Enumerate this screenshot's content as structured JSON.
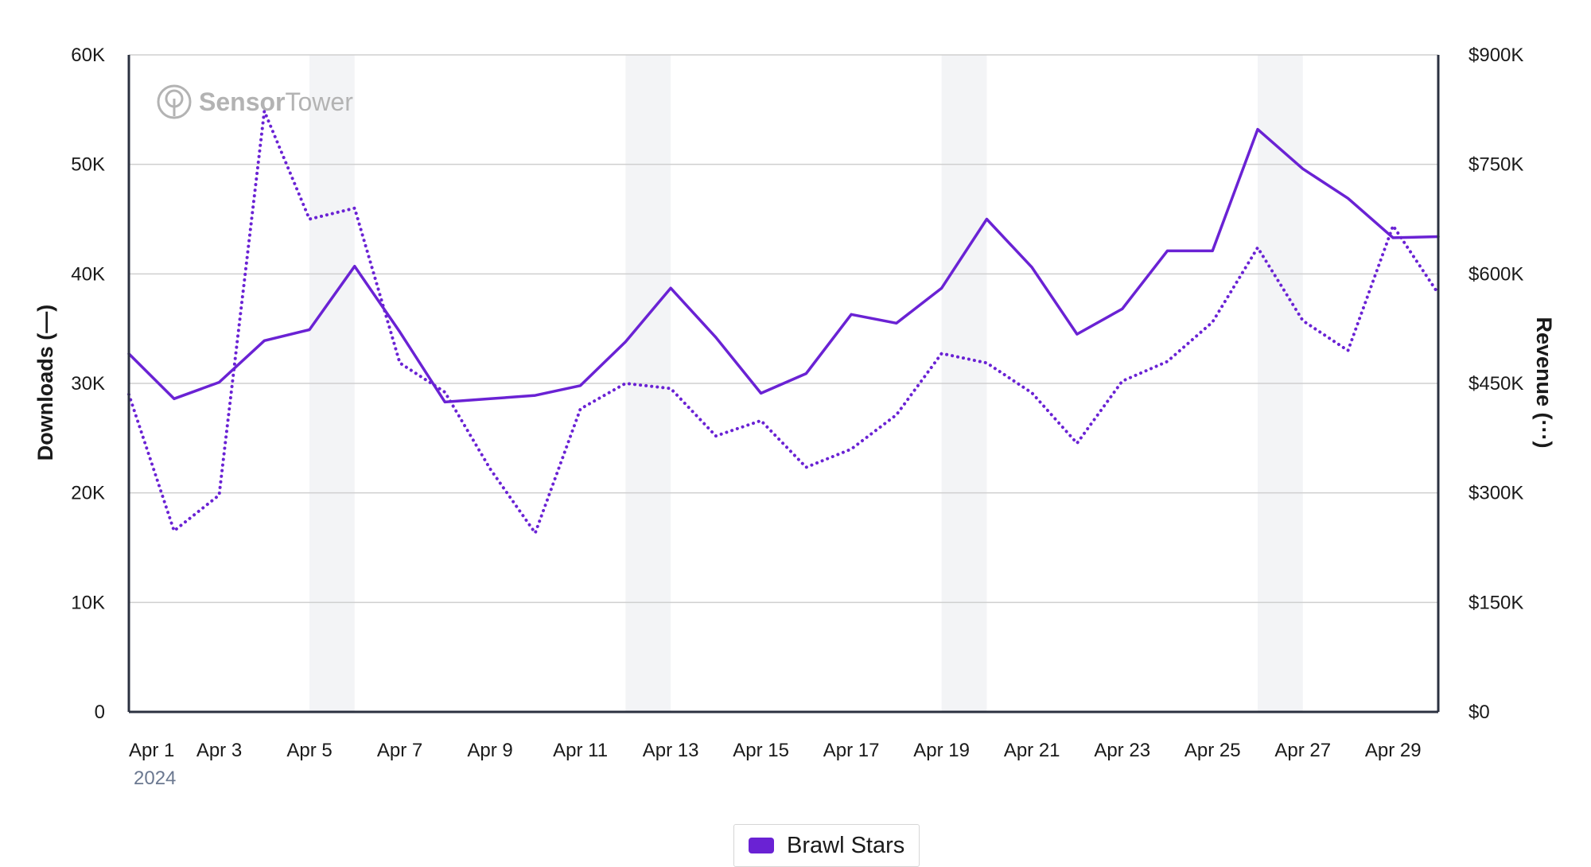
{
  "chart_data": {
    "type": "line",
    "categories": [
      "Apr 1",
      "Apr 2",
      "Apr 3",
      "Apr 4",
      "Apr 5",
      "Apr 6",
      "Apr 7",
      "Apr 8",
      "Apr 9",
      "Apr 10",
      "Apr 11",
      "Apr 12",
      "Apr 13",
      "Apr 14",
      "Apr 15",
      "Apr 16",
      "Apr 17",
      "Apr 18",
      "Apr 19",
      "Apr 20",
      "Apr 21",
      "Apr 22",
      "Apr 23",
      "Apr 24",
      "Apr 25",
      "Apr 26",
      "Apr 27",
      "Apr 28",
      "Apr 29",
      "Apr 30"
    ],
    "x_tick_labels": [
      "Apr 1",
      "Apr 3",
      "Apr 5",
      "Apr 7",
      "Apr 9",
      "Apr 11",
      "Apr 13",
      "Apr 15",
      "Apr 17",
      "Apr 19",
      "Apr 21",
      "Apr 23",
      "Apr 25",
      "Apr 27",
      "Apr 29"
    ],
    "x_year_label": "2024",
    "series": [
      {
        "name": "Brawl Stars",
        "metric": "Downloads",
        "axis": "left",
        "style": "solid",
        "values": [
          32700,
          28600,
          30100,
          33900,
          34900,
          40700,
          34700,
          28300,
          28600,
          28900,
          29800,
          33800,
          38700,
          34200,
          29100,
          30900,
          36300,
          35500,
          38700,
          45000,
          40600,
          34500,
          36800,
          42100,
          42100,
          53200,
          49600,
          46900,
          43300,
          43400
        ]
      },
      {
        "name": "Brawl Stars",
        "metric": "Revenue",
        "axis": "right",
        "style": "dotted",
        "values": [
          435000,
          248000,
          297000,
          823000,
          675000,
          690000,
          478000,
          438000,
          333000,
          245000,
          415000,
          450000,
          443000,
          378000,
          399000,
          335000,
          360000,
          407000,
          491000,
          478000,
          437000,
          368000,
          453000,
          480000,
          534000,
          636000,
          536000,
          495000,
          666000,
          573000
        ]
      }
    ],
    "y_left": {
      "label": "Downloads (—)",
      "ticks": [
        "0",
        "10K",
        "20K",
        "30K",
        "40K",
        "50K",
        "60K"
      ],
      "min": 0,
      "max": 60000
    },
    "y_right": {
      "label": "Revenue (···)",
      "ticks": [
        "$0",
        "$150K",
        "$300K",
        "$450K",
        "$600K",
        "$750K",
        "$900K"
      ],
      "min": 0,
      "max": 900000
    },
    "weekend_bands": [
      [
        "Apr 5",
        "Apr 6"
      ],
      [
        "Apr 12",
        "Apr 13"
      ],
      [
        "Apr 19",
        "Apr 20"
      ],
      [
        "Apr 26",
        "Apr 27"
      ]
    ],
    "grid": true,
    "legend_position": "bottom-center"
  },
  "watermark": {
    "brand_main": "Sensor",
    "brand_sub": "Tower"
  },
  "legend": {
    "label": "Brawl Stars"
  },
  "colors": {
    "series": "#6a22d4",
    "band": "#f3f4f6",
    "grid": "#cfcfcf",
    "axis": "#2b3140",
    "watermark": "#b3b3b3"
  },
  "icons": {
    "watermark_logo": "sensor-tower-logo-icon"
  }
}
